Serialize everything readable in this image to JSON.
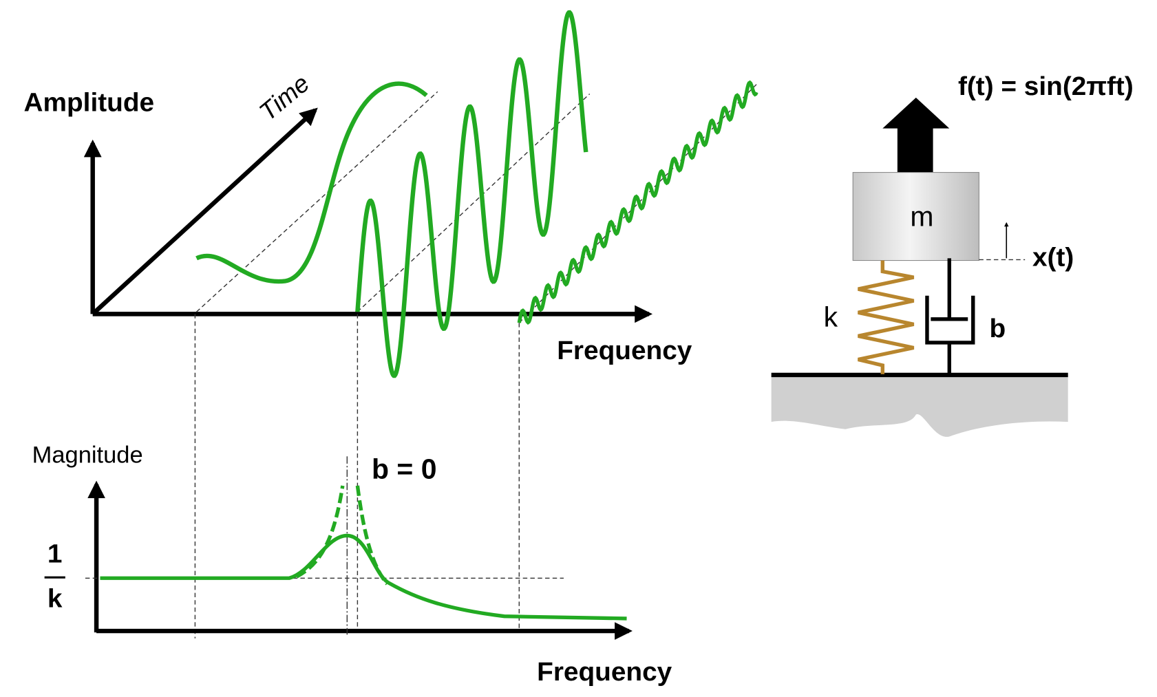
{
  "spectrum": {
    "y_label": "Amplitude",
    "z_label": "Time",
    "x_label": "Frequency"
  },
  "response": {
    "y_label": "Magnitude",
    "annotation": "b = 0",
    "level_numerator": "1",
    "level_denominator": "k",
    "x_label": "Frequency"
  },
  "system": {
    "force": "f(t) = sin(2πft)",
    "mass": "m",
    "displacement": "x(t)",
    "spring": "k",
    "damper": "b"
  }
}
